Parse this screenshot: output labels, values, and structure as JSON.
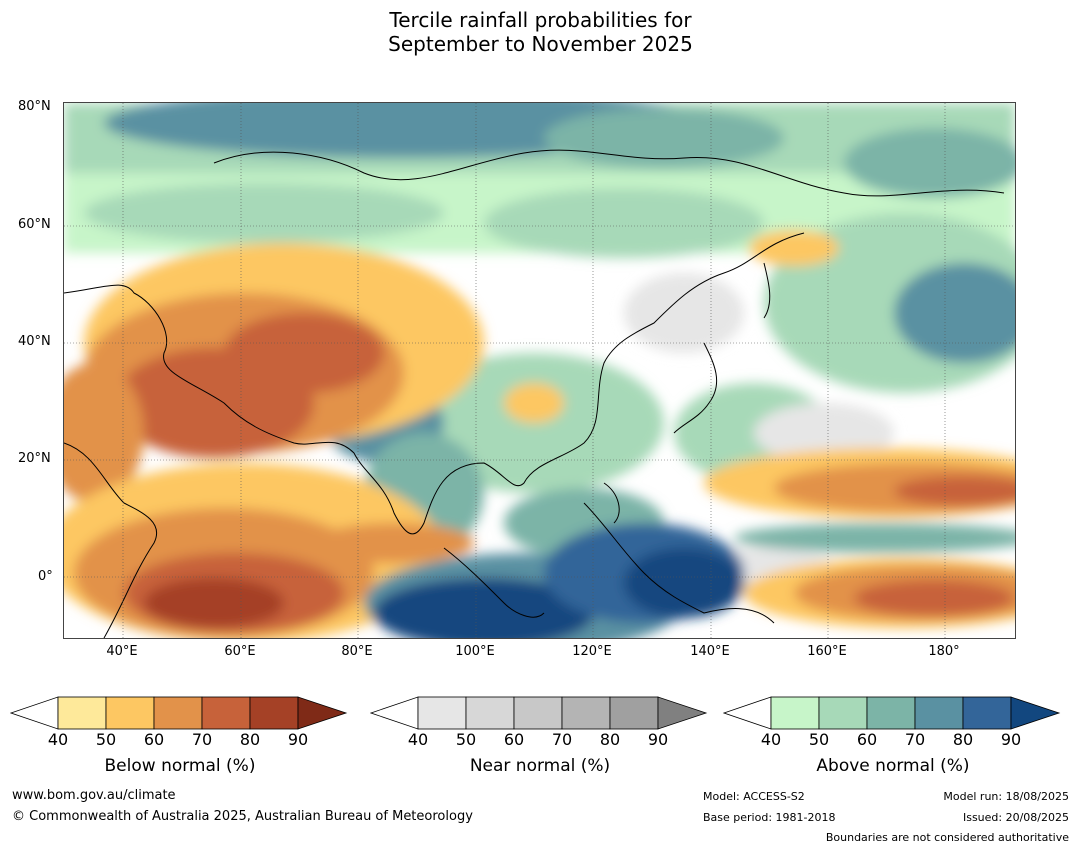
{
  "title_line1": "Tercile rainfall probabilities for",
  "title_line2": "September to November 2025",
  "lat_ticks": [
    "80°N",
    "60°N",
    "40°N",
    "20°N",
    "0°"
  ],
  "lon_ticks": [
    "40°E",
    "60°E",
    "80°E",
    "100°E",
    "120°E",
    "140°E",
    "160°E",
    "180°"
  ],
  "colorbars": [
    {
      "title": "Below normal (%)",
      "labels": [
        "40",
        "50",
        "60",
        "70",
        "80",
        "90"
      ],
      "colors": [
        "#ffffff",
        "#fee99a",
        "#fdc762",
        "#e2924a",
        "#c7623a",
        "#a54126",
        "#7f2a17"
      ]
    },
    {
      "title": "Near normal (%)",
      "labels": [
        "40",
        "50",
        "60",
        "70",
        "80",
        "90"
      ],
      "colors": [
        "#ffffff",
        "#e6e6e6",
        "#d7d7d7",
        "#c8c8c8",
        "#b4b4b4",
        "#a0a0a0",
        "#808080"
      ]
    },
    {
      "title": "Above normal (%)",
      "labels": [
        "40",
        "50",
        "60",
        "70",
        "80",
        "90"
      ],
      "colors": [
        "#ffffff",
        "#c7f5c9",
        "#a7d9b8",
        "#7cb4a7",
        "#5a91a2",
        "#336599",
        "#12477f"
      ]
    }
  ],
  "footer": {
    "website": "www.bom.gov.au/climate",
    "copyright": "© Commonwealth of Australia 2025, Australian Bureau of Meteorology",
    "model": "Model: ACCESS-S2",
    "base_period": "Base period: 1981-2018",
    "model_run": "Model run: 18/08/2025",
    "issued": "Issued: 20/08/2025",
    "disclaimer": "Boundaries are not considered authoritative"
  }
}
